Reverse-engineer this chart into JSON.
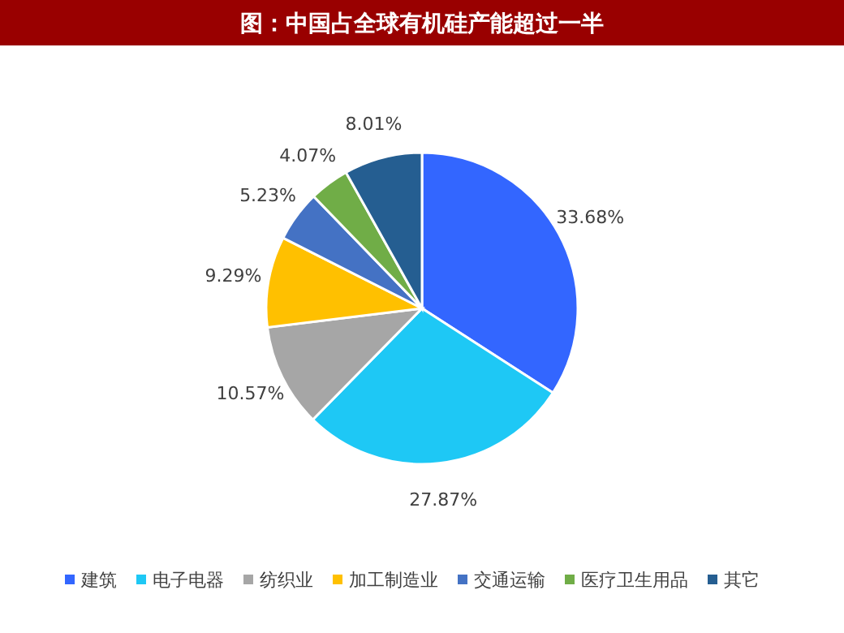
{
  "chart_data": {
    "type": "pie",
    "title": "图：中国占全球有机硅产能超过一半",
    "categories": [
      "建筑",
      "电子电器",
      "纺织业",
      "加工制造业",
      "交通运输",
      "医疗卫生用品",
      "其它"
    ],
    "values": [
      33.68,
      27.87,
      10.57,
      9.29,
      5.23,
      4.07,
      8.01
    ],
    "value_labels": [
      "33.68%",
      "27.87%",
      "10.57%",
      "9.29%",
      "5.23%",
      "4.07%",
      "8.01%"
    ],
    "colors": [
      "#3366ff",
      "#1ec8f5",
      "#a6a6a6",
      "#ffc000",
      "#4472c4",
      "#70ad47",
      "#255e91"
    ],
    "legend": "bottom"
  }
}
